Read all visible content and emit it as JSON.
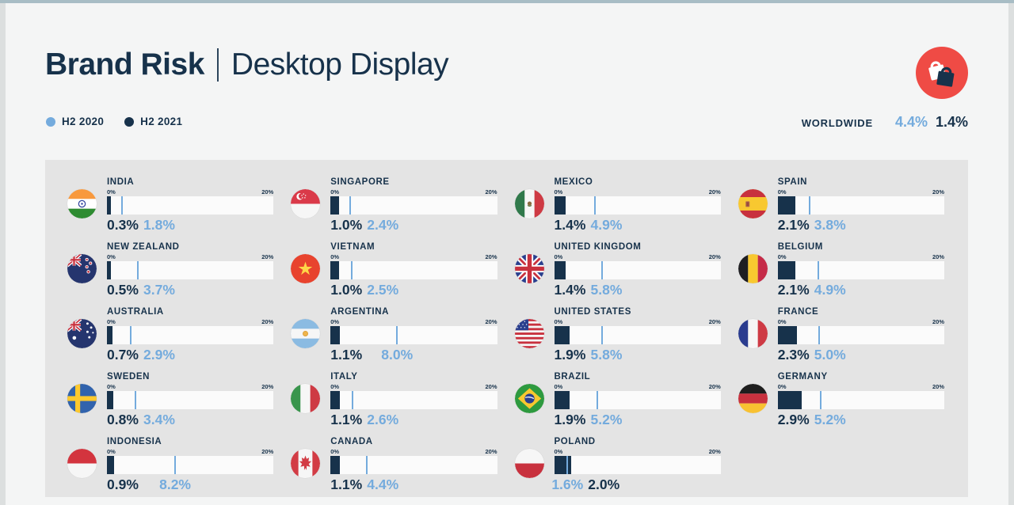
{
  "page": {
    "title_bold": "Brand Risk",
    "title_light": "Desktop Display"
  },
  "header_icon": "shopping-bags-icon",
  "legend": [
    {
      "label": "H2 2020",
      "color": "#74ABDD"
    },
    {
      "label": "H2 2021",
      "color": "#17324B"
    }
  ],
  "worldwide": {
    "label": "WORLDWIDE",
    "h2_2020": "4.4%",
    "h2_2021": "1.4%"
  },
  "colors": {
    "navy": "#17324B",
    "light_blue": "#74ABDD",
    "accent_red": "#EF4B45",
    "page_bg": "#F4F5F5",
    "panel_bg": "#E4E4E4",
    "track_bg": "#FBFBFB",
    "top_strip": "#A8BDC5"
  },
  "chart_data": {
    "type": "bar",
    "title": "Brand Risk | Desktop Display",
    "unit": "percent",
    "series_names": [
      "H2 2020",
      "H2 2021"
    ],
    "x_axis": {
      "min": 0,
      "max": 20,
      "min_label": "0%",
      "max_label": "20%"
    },
    "layout": {
      "columns": 4,
      "rows_per_column": 5,
      "flow": "column",
      "legend_position": "top-left"
    },
    "countries": [
      {
        "name": "INDIA",
        "code": "in",
        "h2_2020": 1.8,
        "h2_2021": 0.3
      },
      {
        "name": "NEW ZEALAND",
        "code": "nz",
        "h2_2020": 3.7,
        "h2_2021": 0.5
      },
      {
        "name": "AUSTRALIA",
        "code": "au",
        "h2_2020": 2.9,
        "h2_2021": 0.7
      },
      {
        "name": "SWEDEN",
        "code": "se",
        "h2_2020": 3.4,
        "h2_2021": 0.8
      },
      {
        "name": "INDONESIA",
        "code": "id",
        "h2_2020": 8.2,
        "h2_2021": 0.9
      },
      {
        "name": "SINGAPORE",
        "code": "sg",
        "h2_2020": 2.4,
        "h2_2021": 1.0
      },
      {
        "name": "VIETNAM",
        "code": "vn",
        "h2_2020": 2.5,
        "h2_2021": 1.0
      },
      {
        "name": "ARGENTINA",
        "code": "ar",
        "h2_2020": 8.0,
        "h2_2021": 1.1
      },
      {
        "name": "ITALY",
        "code": "it",
        "h2_2020": 2.6,
        "h2_2021": 1.1
      },
      {
        "name": "CANADA",
        "code": "ca",
        "h2_2020": 4.4,
        "h2_2021": 1.1
      },
      {
        "name": "MEXICO",
        "code": "mx",
        "h2_2020": 4.9,
        "h2_2021": 1.4
      },
      {
        "name": "UNITED KINGDOM",
        "code": "gb",
        "h2_2020": 5.8,
        "h2_2021": 1.4
      },
      {
        "name": "UNITED STATES",
        "code": "us",
        "h2_2020": 5.8,
        "h2_2021": 1.9
      },
      {
        "name": "BRAZIL",
        "code": "br",
        "h2_2020": 5.2,
        "h2_2021": 1.9
      },
      {
        "name": "POLAND",
        "code": "pl",
        "h2_2020": 1.6,
        "h2_2021": 2.0
      },
      {
        "name": "SPAIN",
        "code": "es",
        "h2_2020": 3.8,
        "h2_2021": 2.1
      },
      {
        "name": "BELGIUM",
        "code": "be",
        "h2_2020": 4.9,
        "h2_2021": 2.1
      },
      {
        "name": "FRANCE",
        "code": "fr",
        "h2_2020": 5.0,
        "h2_2021": 2.3
      },
      {
        "name": "GERMANY",
        "code": "de",
        "h2_2020": 5.2,
        "h2_2021": 2.9
      }
    ]
  }
}
